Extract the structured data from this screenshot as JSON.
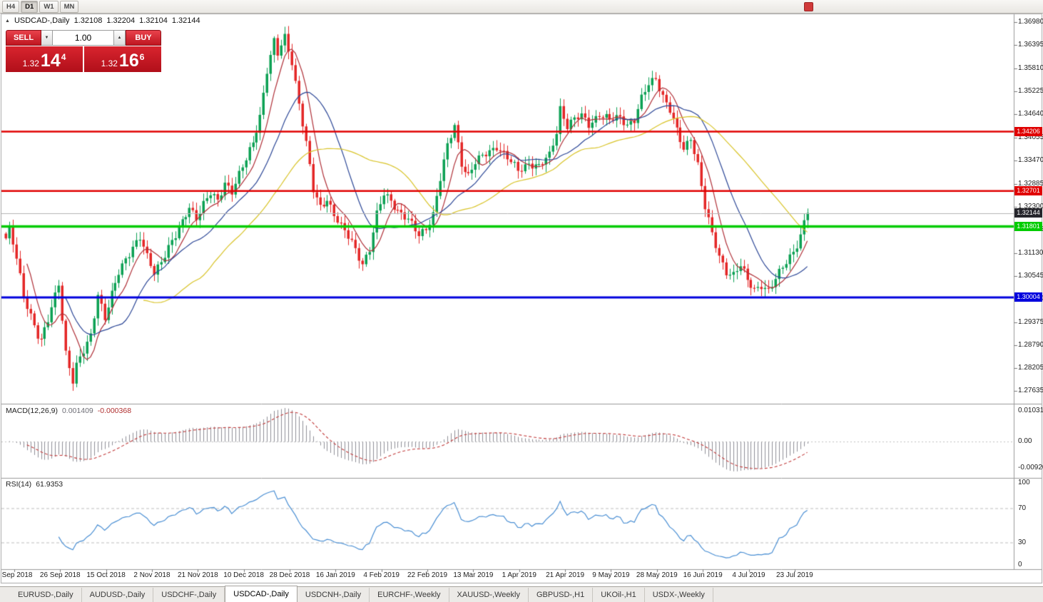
{
  "toolbar": {
    "timeframes": [
      {
        "label": "H4",
        "active": false
      },
      {
        "label": "D1",
        "active": true
      },
      {
        "label": "W1",
        "active": false
      },
      {
        "label": "MN",
        "active": false
      }
    ]
  },
  "chart_header": {
    "marker_icon": "▲",
    "title": "USDCAD-,Daily",
    "open": "1.32108",
    "high": "1.32204",
    "low": "1.32104",
    "close": "1.32144"
  },
  "trade_panel": {
    "sell_label": "SELL",
    "buy_label": "BUY",
    "volume": "1.00",
    "volume_down_icon": "▼",
    "volume_up_icon": "▲",
    "sell_price": {
      "big_figure": "1.32",
      "pips": "14",
      "pipette": "4"
    },
    "buy_price": {
      "big_figure": "1.32",
      "pips": "16",
      "pipette": "6"
    }
  },
  "indicators": {
    "macd": {
      "name": "MACD(12,26,9)",
      "main_value": "0.001409",
      "signal_value": "-0.000368",
      "axis_max": "0.010311",
      "axis_zero": "0.00",
      "axis_min": "-0.009203"
    },
    "rsi": {
      "name": "RSI(14)",
      "value": "61.9353",
      "axis": [
        "100",
        "70",
        "30",
        "0"
      ]
    }
  },
  "tabs": [
    {
      "label": "EURUSD-,Daily",
      "active": false
    },
    {
      "label": "AUDUSD-,Daily",
      "active": false
    },
    {
      "label": "USDCHF-,Daily",
      "active": false
    },
    {
      "label": "USDCAD-,Daily",
      "active": true
    },
    {
      "label": "USDCNH-,Daily",
      "active": false
    },
    {
      "label": "EURCHF-,Weekly",
      "active": false
    },
    {
      "label": "XAUUSD-,Weekly",
      "active": false
    },
    {
      "label": "GBPUSD-,H1",
      "active": false
    },
    {
      "label": "UKOil-,H1",
      "active": false
    },
    {
      "label": "USDX-,Weekly",
      "active": false
    }
  ],
  "chart_data": {
    "type": "candlestick",
    "symbol": "USDCAD",
    "timeframe": "Daily",
    "ohlc": {
      "open": 1.32108,
      "high": 1.32204,
      "low": 1.32104,
      "close": 1.32144
    },
    "y_axis_labels": [
      "1.36980",
      "1.36395",
      "1.35810",
      "1.35225",
      "1.34640",
      "1.34055",
      "1.33470",
      "1.32885",
      "1.32300",
      "1.31715",
      "1.31130",
      "1.30545",
      "1.29960",
      "1.29375",
      "1.28790",
      "1.28205",
      "1.27635"
    ],
    "x_axis_labels": [
      "7 Sep 2018",
      "26 Sep 2018",
      "15 Oct 2018",
      "2 Nov 2018",
      "21 Nov 2018",
      "10 Dec 2018",
      "28 Dec 2018",
      "16 Jan 2019",
      "4 Feb 2019",
      "22 Feb 2019",
      "13 Mar 2019",
      "1 Apr 2019",
      "21 Apr 2019",
      "9 May 2019",
      "28 May 2019",
      "16 Jun 2019",
      "4 Jul 2019",
      "23 Jul 2019"
    ],
    "levels": [
      {
        "name": "resistance-upper",
        "price": 1.34206,
        "label": "1.34206",
        "color": "#e00000",
        "width": 2.5
      },
      {
        "name": "resistance-lower",
        "price": 1.32701,
        "label": "1.32701",
        "color": "#e00000",
        "width": 2.5
      },
      {
        "name": "support-green",
        "price": 1.31801,
        "label": "1.31801",
        "color": "#00cc00",
        "width": 3.5
      },
      {
        "name": "support-blue",
        "price": 1.30004,
        "label": "1.30004",
        "color": "#0000dd",
        "width": 3
      }
    ],
    "bid_line": {
      "price": 1.32144,
      "label": "1.32144",
      "line_color": "#b4b4b4",
      "tag_bg": "#26262c"
    },
    "candle_count": 228,
    "candle_up_color": "#0ca154",
    "candle_down_color": "#e42626",
    "close_anchors": [
      [
        0,
        1.315
      ],
      [
        1,
        1.3172
      ],
      [
        3,
        1.3098
      ],
      [
        5,
        1.3005
      ],
      [
        7,
        1.2958
      ],
      [
        9,
        1.2905
      ],
      [
        10,
        1.289
      ],
      [
        12,
        1.294
      ],
      [
        14,
        1.3005
      ],
      [
        15,
        1.3038
      ],
      [
        16,
        1.295
      ],
      [
        17,
        1.2862
      ],
      [
        19,
        1.2788
      ],
      [
        20,
        1.2825
      ],
      [
        22,
        1.2862
      ],
      [
        24,
        1.2905
      ],
      [
        26,
        1.3012
      ],
      [
        28,
        1.2948
      ],
      [
        30,
        1.3005
      ],
      [
        32,
        1.3062
      ],
      [
        34,
        1.31
      ],
      [
        36,
        1.313
      ],
      [
        38,
        1.3152
      ],
      [
        40,
        1.31
      ],
      [
        42,
        1.3062
      ],
      [
        44,
        1.3095
      ],
      [
        46,
        1.313
      ],
      [
        48,
        1.3155
      ],
      [
        50,
        1.3188
      ],
      [
        52,
        1.323
      ],
      [
        54,
        1.3205
      ],
      [
        56,
        1.3238
      ],
      [
        58,
        1.3262
      ],
      [
        60,
        1.3242
      ],
      [
        62,
        1.3292
      ],
      [
        64,
        1.3272
      ],
      [
        66,
        1.3312
      ],
      [
        68,
        1.3348
      ],
      [
        70,
        1.3392
      ],
      [
        72,
        1.3462
      ],
      [
        74,
        1.3578
      ],
      [
        76,
        1.3648
      ],
      [
        77,
        1.3615
      ],
      [
        79,
        1.3658
      ],
      [
        81,
        1.3598
      ],
      [
        83,
        1.3495
      ],
      [
        85,
        1.339
      ],
      [
        87,
        1.327
      ],
      [
        89,
        1.3228
      ],
      [
        91,
        1.3252
      ],
      [
        93,
        1.3212
      ],
      [
        95,
        1.3178
      ],
      [
        98,
        1.314
      ],
      [
        101,
        1.3088
      ],
      [
        103,
        1.3122
      ],
      [
        105,
        1.3208
      ],
      [
        107,
        1.3262
      ],
      [
        109,
        1.3248
      ],
      [
        111,
        1.3222
      ],
      [
        114,
        1.3195
      ],
      [
        117,
        1.3158
      ],
      [
        119,
        1.3178
      ],
      [
        121,
        1.3212
      ],
      [
        123,
        1.33
      ],
      [
        125,
        1.3382
      ],
      [
        127,
        1.3438
      ],
      [
        129,
        1.3342
      ],
      [
        131,
        1.3308
      ],
      [
        133,
        1.334
      ],
      [
        136,
        1.3366
      ],
      [
        139,
        1.3385
      ],
      [
        142,
        1.3352
      ],
      [
        145,
        1.3322
      ],
      [
        148,
        1.3342
      ],
      [
        151,
        1.333
      ],
      [
        154,
        1.336
      ],
      [
        156,
        1.3422
      ],
      [
        157,
        1.3482
      ],
      [
        159,
        1.3435
      ],
      [
        161,
        1.345
      ],
      [
        163,
        1.346
      ],
      [
        165,
        1.344
      ],
      [
        168,
        1.3465
      ],
      [
        171,
        1.3448
      ],
      [
        174,
        1.3458
      ],
      [
        176,
        1.344
      ],
      [
        178,
        1.345
      ],
      [
        180,
        1.3502
      ],
      [
        182,
        1.354
      ],
      [
        184,
        1.3558
      ],
      [
        186,
        1.3512
      ],
      [
        188,
        1.3475
      ],
      [
        190,
        1.342
      ],
      [
        192,
        1.3375
      ],
      [
        194,
        1.3408
      ],
      [
        196,
        1.3338
      ],
      [
        198,
        1.3228
      ],
      [
        200,
        1.3158
      ],
      [
        202,
        1.3105
      ],
      [
        204,
        1.3068
      ],
      [
        206,
        1.3058
      ],
      [
        208,
        1.308
      ],
      [
        210,
        1.3042
      ],
      [
        212,
        1.3022
      ],
      [
        214,
        1.3034
      ],
      [
        216,
        1.3015
      ],
      [
        218,
        1.3044
      ],
      [
        220,
        1.3078
      ],
      [
        222,
        1.3106
      ],
      [
        224,
        1.3135
      ],
      [
        225,
        1.316
      ],
      [
        226,
        1.3196
      ],
      [
        227,
        1.32144
      ]
    ],
    "moving_averages": [
      {
        "period": 7,
        "color": "#b03038"
      },
      {
        "period": 18,
        "color": "#2c4797"
      },
      {
        "period": 40,
        "color": "#d9c428"
      }
    ],
    "macd_params": {
      "fast": 12,
      "slow": 26,
      "signal": 9,
      "axis_max": 0.010311,
      "axis_min": -0.009203,
      "histogram_color": "#8f8f98",
      "signal_color": "#c23a3a"
    },
    "rsi_params": {
      "period": 14,
      "last_value": 61.9353,
      "levels": [
        70,
        30
      ],
      "line_color": "#4a8fd4"
    }
  }
}
